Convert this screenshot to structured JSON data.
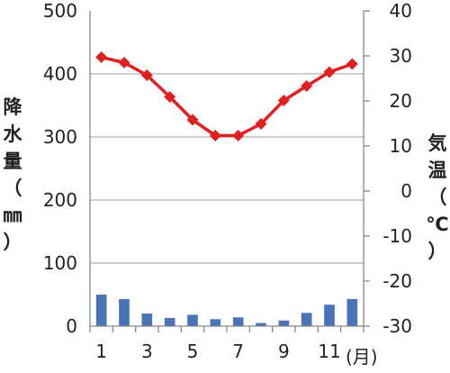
{
  "chart_data": {
    "type": "bar+line",
    "x": [
      1,
      2,
      3,
      4,
      5,
      6,
      7,
      8,
      9,
      10,
      11,
      12
    ],
    "x_tick_labels": [
      "1",
      "3",
      "5",
      "7",
      "9",
      "11"
    ],
    "x_unit_label": "(月)",
    "y_left": {
      "label_chars": [
        "降",
        "水",
        "量",
        "（",
        "㎜",
        "）"
      ],
      "range": [
        0,
        500
      ],
      "ticks": [
        "0",
        "100",
        "200",
        "300",
        "400",
        "500"
      ]
    },
    "y_right": {
      "label_chars": [
        "気",
        "温",
        "（",
        "℃",
        "）"
      ],
      "range": [
        -30,
        40
      ],
      "ticks": [
        "40",
        "30",
        "20",
        "10",
        "0",
        "-10",
        "-20",
        "-30"
      ]
    },
    "series": [
      {
        "kind": "bar",
        "axis": "left",
        "values": [
          50,
          43,
          20,
          13,
          18,
          11,
          14,
          5,
          9,
          21,
          34,
          43
        ]
      },
      {
        "kind": "line",
        "axis": "right",
        "values": [
          29.7,
          28.5,
          25.7,
          20.9,
          15.8,
          12.3,
          12.3,
          14.9,
          20.1,
          23.3,
          26.4,
          28.2
        ]
      }
    ],
    "grid": true,
    "colors": {
      "bar": "#4a74b8",
      "line": "#e02020",
      "grid": "#b0b0b0"
    }
  }
}
